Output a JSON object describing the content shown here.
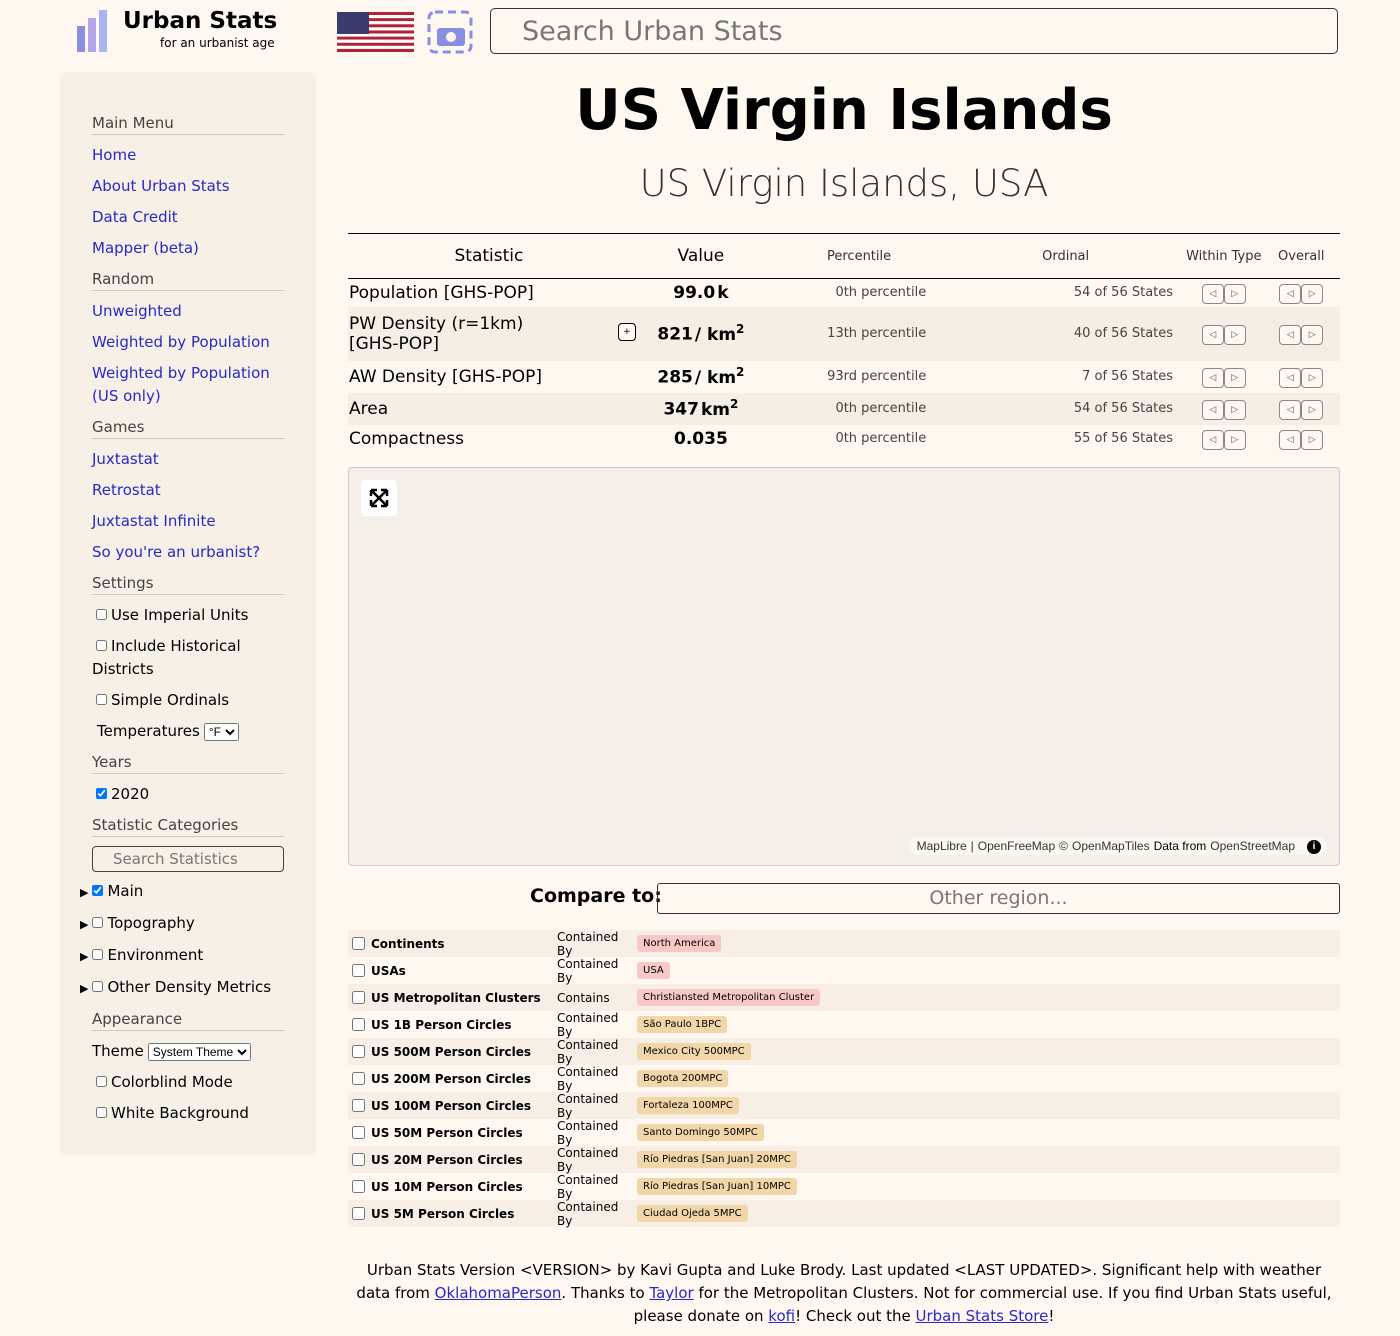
{
  "header": {
    "title": "Urban Stats",
    "subtitle": "for an urbanist age",
    "search_placeholder": "Search Urban Stats"
  },
  "sidebar": [
    {
      "title": "Main Menu",
      "items": [
        {
          "kind": "link",
          "text": "Home"
        },
        {
          "kind": "link",
          "text": "About Urban Stats"
        },
        {
          "kind": "link",
          "text": "Data Credit"
        },
        {
          "kind": "link",
          "text": "Mapper (beta)"
        }
      ]
    },
    {
      "title": "Random",
      "items": [
        {
          "kind": "link",
          "text": "Unweighted"
        },
        {
          "kind": "link",
          "text": "Weighted by Population"
        },
        {
          "kind": "link",
          "text": "Weighted by Population (US only)"
        }
      ]
    },
    {
      "title": "Games",
      "items": [
        {
          "kind": "link",
          "text": "Juxtastat"
        },
        {
          "kind": "link",
          "text": "Retrostat"
        },
        {
          "kind": "link",
          "text": "Juxtastat Infinite"
        },
        {
          "kind": "link",
          "text": "So you're an urbanist?"
        }
      ]
    },
    {
      "title": "Settings",
      "items": [
        {
          "kind": "checkbox",
          "text": "Use Imperial Units",
          "checked": false
        },
        {
          "kind": "checkbox",
          "text": "Include Historical Districts",
          "checked": false
        },
        {
          "kind": "checkbox",
          "text": "Simple Ordinals",
          "checked": false
        },
        {
          "kind": "select",
          "text": "Temperatures",
          "option": "°F"
        }
      ]
    },
    {
      "title": "Years",
      "items": [
        {
          "kind": "checkbox",
          "text": "2020",
          "checked": true
        }
      ]
    },
    {
      "title": "Statistic Categories",
      "items": [
        {
          "kind": "search",
          "text": "Search Statistics"
        },
        {
          "kind": "category",
          "text": "Main",
          "checked": true
        },
        {
          "kind": "category",
          "text": "Topography",
          "checked": false
        },
        {
          "kind": "category",
          "text": "Environment",
          "checked": false
        },
        {
          "kind": "category",
          "text": "Other Density Metrics",
          "checked": false
        }
      ]
    },
    {
      "title": "Appearance",
      "items": [
        {
          "kind": "select",
          "text": "Theme",
          "option": "System Theme"
        },
        {
          "kind": "checkbox",
          "text": "Colorblind Mode",
          "checked": false
        },
        {
          "kind": "checkbox",
          "text": "White Background",
          "checked": false
        }
      ]
    }
  ],
  "main": {
    "title": "US Virgin Islands",
    "subtitle": "US Virgin Islands, USA",
    "table": {
      "headers": [
        "Statistic",
        "Value",
        "Percentile",
        "Ordinal",
        "Within Type",
        "Overall"
      ],
      "rows": [
        {
          "name": "Population [GHS-POP]",
          "value": "99.0",
          "unit": "k",
          "sup": null,
          "percentile": "0th percentile",
          "ordinal": "54 of 56 States"
        },
        {
          "name": "PW Density (r=1km) [GHS-POP]",
          "value": "821",
          "unit": "/ km",
          "sup": "2",
          "percentile": "13th percentile",
          "ordinal": "40 of 56 States"
        },
        {
          "name": "AW Density [GHS-POP]",
          "value": "285",
          "unit": "/ km",
          "sup": "2",
          "percentile": "93rd percentile",
          "ordinal": "7 of 56 States"
        },
        {
          "name": "Area",
          "value": "347",
          "unit": "km",
          "sup": "2",
          "percentile": "0th percentile",
          "ordinal": "54 of 56 States"
        },
        {
          "name": "Compactness",
          "value": "0.035",
          "unit": null,
          "sup": null,
          "percentile": "0th percentile",
          "ordinal": "55 of 56 States"
        }
      ]
    },
    "map_attribution": [
      "MapLibre",
      "|",
      "OpenFreeMap",
      "©",
      "OpenMapTiles",
      "Data from",
      "OpenStreetMap"
    ],
    "compare_label": "Compare to:",
    "compare_placeholder": "Other region...",
    "related": [
      {
        "type": "Continents",
        "relation": "Contained By",
        "region": "North America",
        "color": "#f8c8c6"
      },
      {
        "type": "USAs",
        "relation": "Contained By",
        "region": "USA",
        "color": "#f8c8c6"
      },
      {
        "type": "US Metropolitan Clusters",
        "relation": "Contains",
        "region": "Christiansted Metropolitan Cluster",
        "color": "#f8c8c6"
      },
      {
        "type": "US 1B Person Circles",
        "relation": "Contained By",
        "region": "São Paulo 1BPC",
        "color": "#f0d6a9"
      },
      {
        "type": "US 500M Person Circles",
        "relation": "Contained By",
        "region": "Mexico City 500MPC",
        "color": "#f0d6a9"
      },
      {
        "type": "US 200M Person Circles",
        "relation": "Contained By",
        "region": "Bogota 200MPC",
        "color": "#f0d6a9"
      },
      {
        "type": "US 100M Person Circles",
        "relation": "Contained By",
        "region": "Fortaleza 100MPC",
        "color": "#f0d6a9"
      },
      {
        "type": "US 50M Person Circles",
        "relation": "Contained By",
        "region": "Santo Domingo 50MPC",
        "color": "#f0d6a9"
      },
      {
        "type": "US 20M Person Circles",
        "relation": "Contained By",
        "region": "Río Piedras [San Juan] 20MPC",
        "color": "#f0d6a9"
      },
      {
        "type": "US 10M Person Circles",
        "relation": "Contained By",
        "region": "Río Piedras [San Juan] 10MPC",
        "color": "#f0d6a9"
      },
      {
        "type": "US 5M Person Circles",
        "relation": "Contained By",
        "region": "Ciudad Ojeda 5MPC",
        "color": "#f0d6a9"
      }
    ]
  },
  "footer": [
    {
      "text": "Urban Stats Version <VERSION> by Kavi Gupta and Luke Brody. Last updated <LAST UPDATED>. Significant help with weather data from "
    },
    {
      "link": "OklahomaPerson"
    },
    {
      "text": ". Thanks to "
    },
    {
      "link": "Taylor"
    },
    {
      "text": " for the Metropolitan Clusters. Not for commercial use. If you find Urban Stats useful, please donate on "
    },
    {
      "link": "kofi"
    },
    {
      "text": "! Check out the "
    },
    {
      "link": "Urban Stats Store"
    },
    {
      "text": "!"
    }
  ]
}
